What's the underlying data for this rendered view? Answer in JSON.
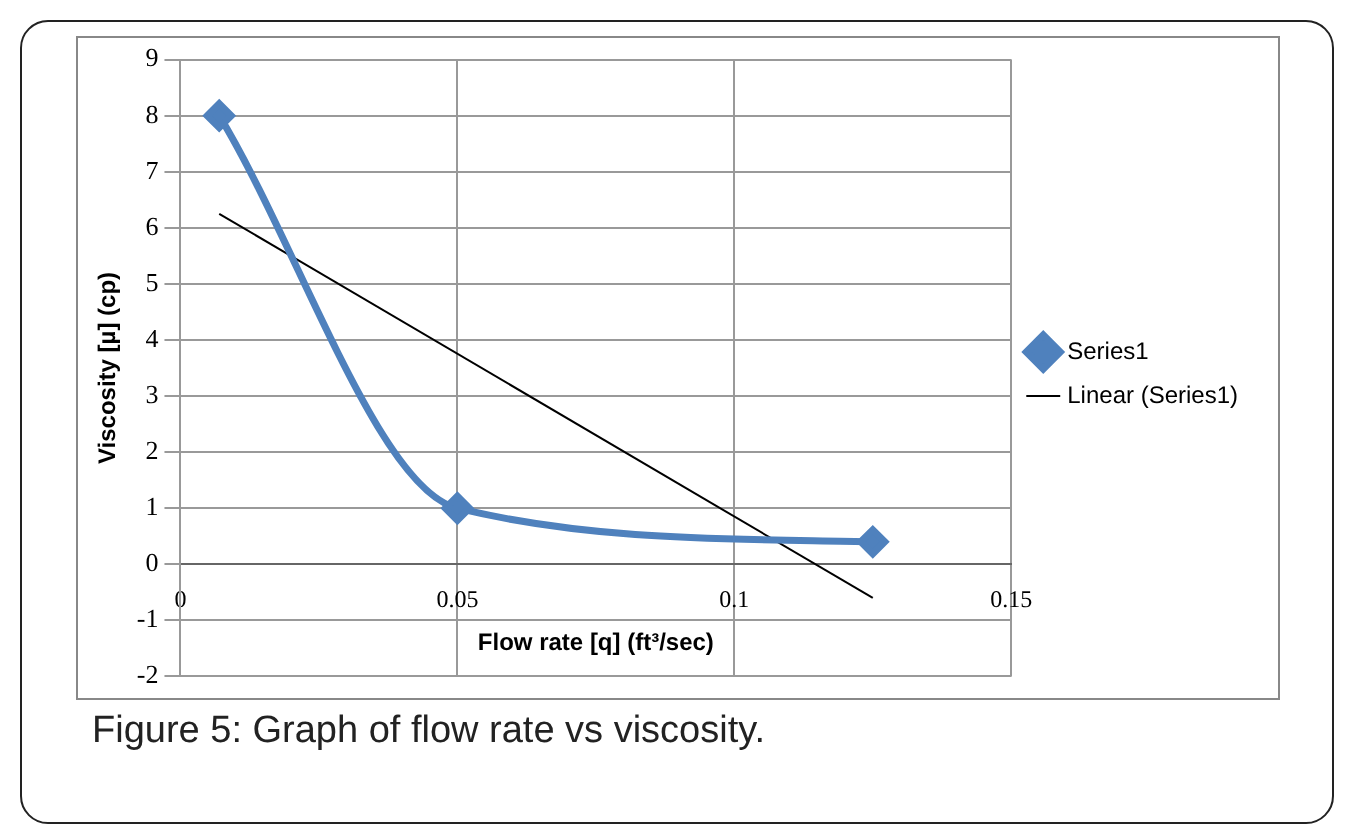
{
  "chart_data": {
    "type": "line",
    "xlabel": "Flow rate [q] (ft³/sec)",
    "ylabel": "Viscosity [µ] (cp)",
    "x": [
      0.007,
      0.05,
      0.125
    ],
    "series": [
      {
        "name": "Series1",
        "color": "#4f81bd",
        "values": [
          8,
          1,
          0.4
        ],
        "marker": "diamond"
      },
      {
        "name": "Linear (Series1)",
        "color": "#000000",
        "x": [
          0.007,
          0.125
        ],
        "values": [
          6.25,
          -0.6
        ],
        "marker": "none"
      }
    ],
    "xlim": [
      0,
      0.15
    ],
    "xticks": [
      0,
      0.05,
      0.1,
      0.15
    ],
    "ylim": [
      -2,
      9
    ],
    "yticks": [
      -2,
      -1,
      0,
      1,
      2,
      3,
      4,
      5,
      6,
      7,
      8,
      9
    ],
    "grid": true,
    "legend": "right",
    "annotations": [
      "Figure 5: Graph of flow rate vs viscosity."
    ]
  }
}
